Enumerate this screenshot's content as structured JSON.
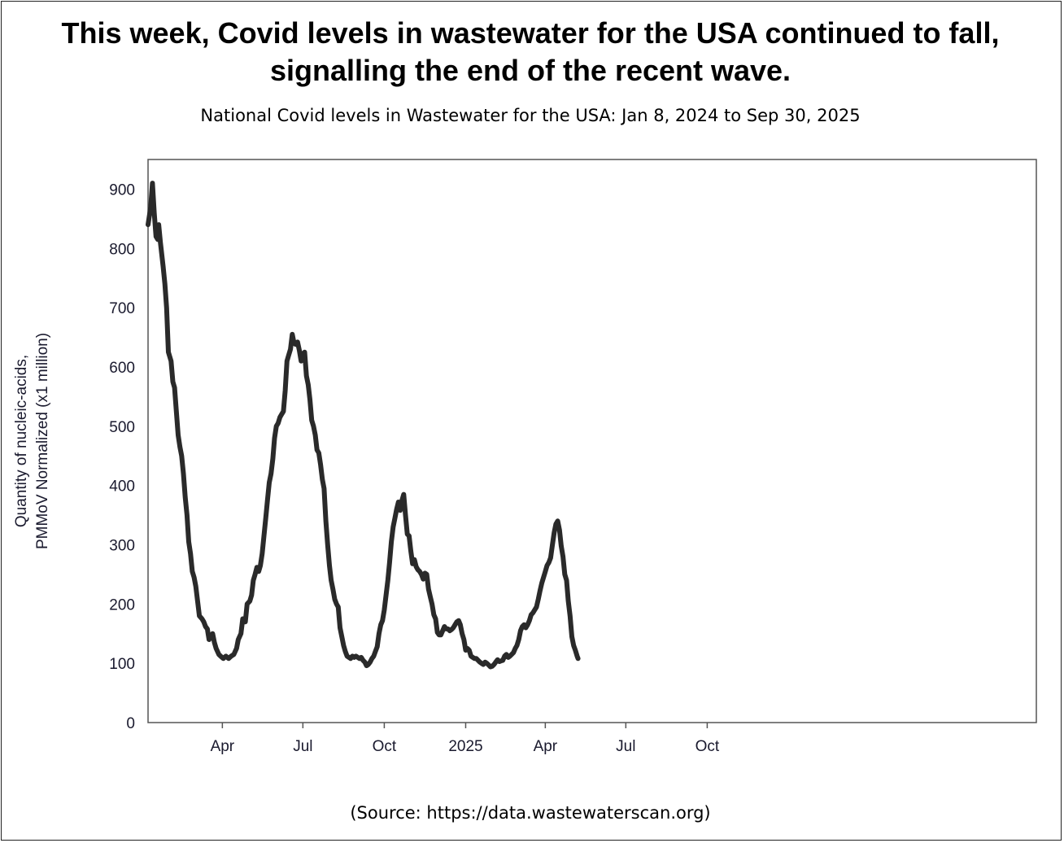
{
  "headline": {
    "line1": "This week, Covid levels in wastewater for the USA continued to fall,",
    "line2": "signalling the end of the recent wave."
  },
  "source": "(Source: https://data.wastewaterscan.org)",
  "chart_data": {
    "type": "line",
    "title": "National Covid levels in Wastewater for the USA: Jan 8, 2024 to Sep 30, 2025",
    "xlabel": "",
    "ylabel_line1": "Quantity of nucleic-acids,",
    "ylabel_line2": "PMMoV Normalized (x1 million)",
    "ylim": [
      0,
      950
    ],
    "yticks": [
      0,
      100,
      200,
      300,
      400,
      500,
      600,
      700,
      800,
      900
    ],
    "xlim_days": [
      0,
      1004
    ],
    "grid": false,
    "line_color": "#2a2a2a",
    "xticks": [
      {
        "day": 84,
        "label": "Apr"
      },
      {
        "day": 175,
        "label": "Jul"
      },
      {
        "day": 267,
        "label": "Oct"
      },
      {
        "day": 359,
        "label": "2025"
      },
      {
        "day": 449,
        "label": "Apr"
      },
      {
        "day": 540,
        "label": "Jul"
      },
      {
        "day": 632,
        "label": "Oct"
      }
    ],
    "series": [
      {
        "name": "National Covid levels",
        "points": [
          [
            0,
            840
          ],
          [
            3,
            870
          ],
          [
            5,
            910
          ],
          [
            7,
            860
          ],
          [
            9,
            820
          ],
          [
            11,
            815
          ],
          [
            12,
            840
          ],
          [
            14,
            810
          ],
          [
            17,
            770
          ],
          [
            19,
            740
          ],
          [
            21,
            700
          ],
          [
            23,
            625
          ],
          [
            26,
            610
          ],
          [
            28,
            575
          ],
          [
            30,
            565
          ],
          [
            32,
            525
          ],
          [
            34,
            485
          ],
          [
            36,
            465
          ],
          [
            38,
            450
          ],
          [
            40,
            420
          ],
          [
            42,
            380
          ],
          [
            44,
            350
          ],
          [
            46,
            305
          ],
          [
            48,
            285
          ],
          [
            50,
            255
          ],
          [
            52,
            245
          ],
          [
            54,
            230
          ],
          [
            56,
            205
          ],
          [
            58,
            180
          ],
          [
            61,
            175
          ],
          [
            63,
            170
          ],
          [
            65,
            162
          ],
          [
            67,
            158
          ],
          [
            69,
            140
          ],
          [
            71,
            145
          ],
          [
            73,
            150
          ],
          [
            75,
            135
          ],
          [
            77,
            125
          ],
          [
            80,
            115
          ],
          [
            82,
            112
          ],
          [
            85,
            108
          ],
          [
            88,
            112
          ],
          [
            91,
            108
          ],
          [
            94,
            112
          ],
          [
            97,
            115
          ],
          [
            100,
            125
          ],
          [
            102,
            140
          ],
          [
            105,
            150
          ],
          [
            107,
            175
          ],
          [
            110,
            170
          ],
          [
            112,
            200
          ],
          [
            115,
            205
          ],
          [
            117,
            215
          ],
          [
            119,
            240
          ],
          [
            121,
            250
          ],
          [
            123,
            262
          ],
          [
            125,
            255
          ],
          [
            127,
            265
          ],
          [
            129,
            285
          ],
          [
            131,
            315
          ],
          [
            133,
            345
          ],
          [
            135,
            375
          ],
          [
            137,
            405
          ],
          [
            139,
            420
          ],
          [
            141,
            445
          ],
          [
            143,
            480
          ],
          [
            145,
            500
          ],
          [
            147,
            505
          ],
          [
            149,
            515
          ],
          [
            151,
            520
          ],
          [
            153,
            525
          ],
          [
            155,
            560
          ],
          [
            157,
            610
          ],
          [
            159,
            620
          ],
          [
            161,
            630
          ],
          [
            163,
            655
          ],
          [
            165,
            640
          ],
          [
            167,
            638
          ],
          [
            169,
            642
          ],
          [
            171,
            628
          ],
          [
            173,
            610
          ],
          [
            175,
            622
          ],
          [
            177,
            625
          ],
          [
            179,
            585
          ],
          [
            181,
            570
          ],
          [
            183,
            545
          ],
          [
            185,
            510
          ],
          [
            187,
            500
          ],
          [
            189,
            485
          ],
          [
            191,
            460
          ],
          [
            193,
            455
          ],
          [
            195,
            435
          ],
          [
            197,
            410
          ],
          [
            199,
            395
          ],
          [
            201,
            340
          ],
          [
            203,
            300
          ],
          [
            205,
            265
          ],
          [
            207,
            240
          ],
          [
            209,
            225
          ],
          [
            211,
            208
          ],
          [
            213,
            200
          ],
          [
            215,
            195
          ],
          [
            217,
            160
          ],
          [
            219,
            145
          ],
          [
            221,
            130
          ],
          [
            223,
            120
          ],
          [
            225,
            112
          ],
          [
            227,
            110
          ],
          [
            229,
            108
          ],
          [
            231,
            112
          ],
          [
            233,
            110
          ],
          [
            235,
            112
          ],
          [
            237,
            110
          ],
          [
            239,
            108
          ],
          [
            241,
            110
          ],
          [
            243,
            105
          ],
          [
            245,
            102
          ],
          [
            247,
            96
          ],
          [
            249,
            98
          ],
          [
            251,
            102
          ],
          [
            253,
            108
          ],
          [
            255,
            112
          ],
          [
            257,
            120
          ],
          [
            259,
            128
          ],
          [
            261,
            150
          ],
          [
            263,
            165
          ],
          [
            265,
            172
          ],
          [
            267,
            190
          ],
          [
            269,
            215
          ],
          [
            271,
            240
          ],
          [
            273,
            270
          ],
          [
            275,
            305
          ],
          [
            277,
            330
          ],
          [
            279,
            345
          ],
          [
            281,
            360
          ],
          [
            283,
            372
          ],
          [
            285,
            358
          ],
          [
            287,
            375
          ],
          [
            289,
            385
          ],
          [
            291,
            350
          ],
          [
            293,
            318
          ],
          [
            295,
            315
          ],
          [
            297,
            290
          ],
          [
            299,
            268
          ],
          [
            301,
            275
          ],
          [
            303,
            263
          ],
          [
            305,
            258
          ],
          [
            307,
            255
          ],
          [
            309,
            250
          ],
          [
            311,
            242
          ],
          [
            313,
            252
          ],
          [
            315,
            250
          ],
          [
            317,
            225
          ],
          [
            319,
            212
          ],
          [
            321,
            200
          ],
          [
            323,
            182
          ],
          [
            325,
            175
          ],
          [
            327,
            152
          ],
          [
            329,
            148
          ],
          [
            331,
            148
          ],
          [
            333,
            155
          ],
          [
            335,
            162
          ],
          [
            337,
            158
          ],
          [
            339,
            158
          ],
          [
            341,
            155
          ],
          [
            343,
            157
          ],
          [
            345,
            160
          ],
          [
            347,
            165
          ],
          [
            349,
            170
          ],
          [
            351,
            172
          ],
          [
            353,
            165
          ],
          [
            355,
            150
          ],
          [
            357,
            140
          ],
          [
            359,
            122
          ],
          [
            361,
            125
          ],
          [
            363,
            122
          ],
          [
            365,
            112
          ],
          [
            367,
            110
          ],
          [
            369,
            108
          ],
          [
            371,
            108
          ],
          [
            373,
            105
          ],
          [
            375,
            102
          ],
          [
            377,
            100
          ],
          [
            379,
            98
          ],
          [
            381,
            102
          ],
          [
            383,
            100
          ],
          [
            385,
            97
          ],
          [
            387,
            94
          ],
          [
            389,
            95
          ],
          [
            391,
            98
          ],
          [
            393,
            102
          ],
          [
            395,
            106
          ],
          [
            397,
            103
          ],
          [
            399,
            104
          ],
          [
            401,
            105
          ],
          [
            403,
            112
          ],
          [
            405,
            115
          ],
          [
            407,
            110
          ],
          [
            409,
            112
          ],
          [
            411,
            115
          ],
          [
            413,
            118
          ],
          [
            415,
            125
          ],
          [
            417,
            130
          ],
          [
            419,
            140
          ],
          [
            421,
            155
          ],
          [
            423,
            162
          ],
          [
            425,
            165
          ],
          [
            427,
            160
          ],
          [
            429,
            165
          ],
          [
            431,
            172
          ],
          [
            433,
            182
          ],
          [
            435,
            185
          ],
          [
            437,
            190
          ],
          [
            439,
            195
          ],
          [
            441,
            208
          ],
          [
            443,
            222
          ],
          [
            445,
            235
          ],
          [
            447,
            245
          ],
          [
            449,
            255
          ],
          [
            451,
            265
          ],
          [
            453,
            270
          ],
          [
            455,
            278
          ],
          [
            457,
            300
          ],
          [
            459,
            320
          ],
          [
            461,
            335
          ],
          [
            463,
            340
          ],
          [
            465,
            325
          ],
          [
            467,
            298
          ],
          [
            469,
            280
          ],
          [
            471,
            250
          ],
          [
            473,
            240
          ],
          [
            475,
            205
          ],
          [
            477,
            180
          ],
          [
            479,
            145
          ],
          [
            481,
            130
          ],
          [
            483,
            122
          ],
          [
            485,
            112
          ],
          [
            486,
            108
          ]
        ]
      }
    ]
  }
}
